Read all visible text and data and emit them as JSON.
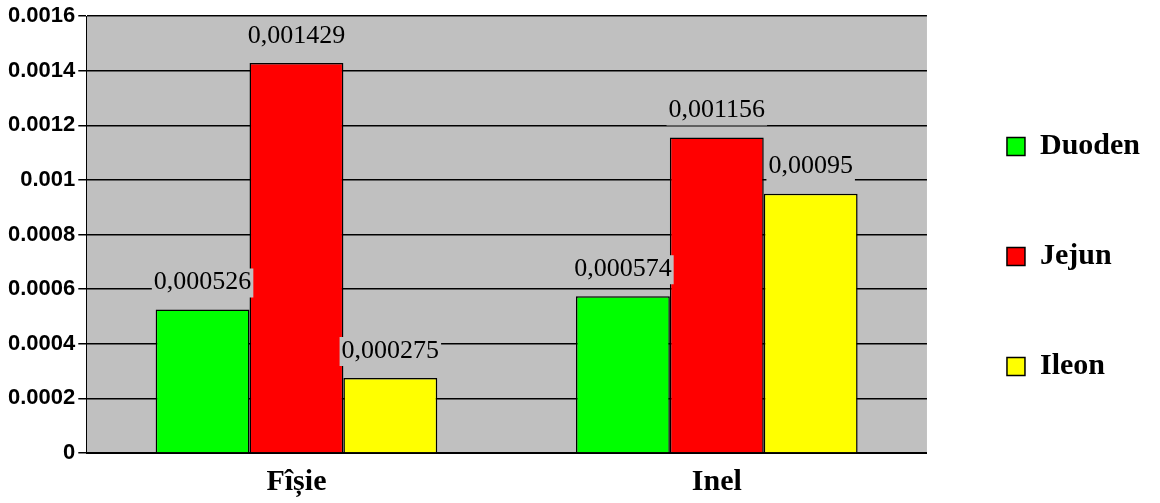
{
  "chart_data": {
    "type": "bar",
    "categories": [
      "Fîșie",
      "Inel"
    ],
    "series": [
      {
        "name": "Duoden",
        "color": "#00ff00",
        "values": [
          0.000526,
          0.000574
        ],
        "value_labels": [
          "0,000526",
          "0,000574"
        ]
      },
      {
        "name": "Jejun",
        "color": "#ff0000",
        "values": [
          0.001429,
          0.001156
        ],
        "value_labels": [
          "0,001429",
          "0,001156"
        ]
      },
      {
        "name": "Ileon",
        "color": "#ffff00",
        "values": [
          0.000275,
          0.00095
        ],
        "value_labels": [
          "0,000275",
          "0,00095"
        ]
      }
    ],
    "ylim": [
      0,
      0.0016
    ],
    "yticks": [
      0,
      0.0002,
      0.0004,
      0.0006,
      0.0008,
      0.001,
      0.0012,
      0.0014,
      0.0016
    ],
    "grid": "y",
    "legend": "right"
  }
}
